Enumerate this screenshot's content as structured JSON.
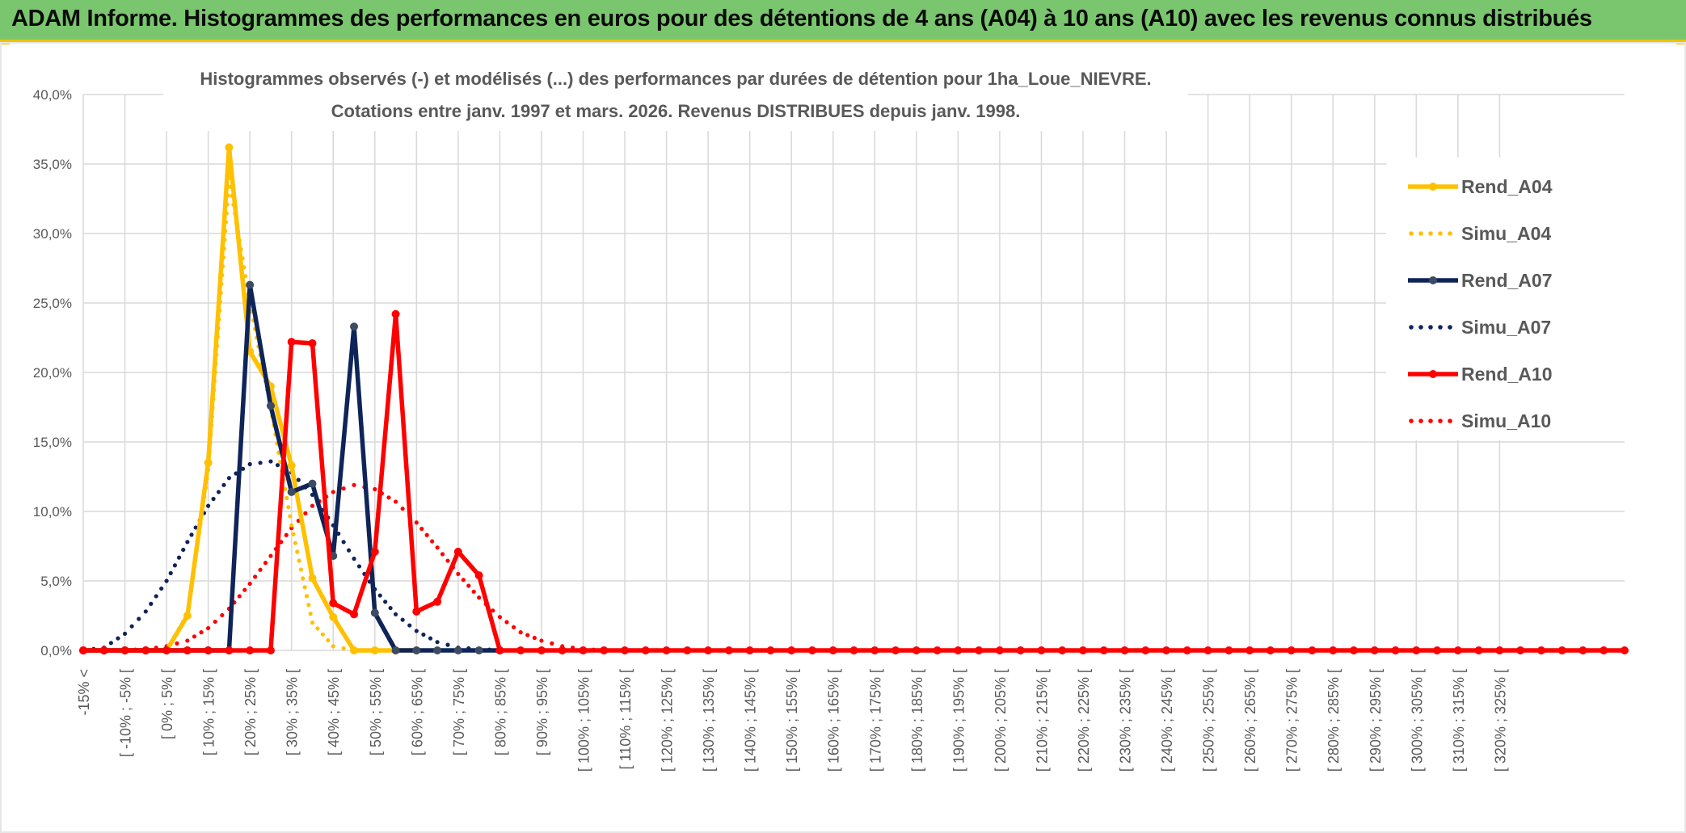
{
  "banner": {
    "title": "ADAM Informe. Histogrammes des performances en euros pour des détentions de 4 ans (A04) à 10 ans (A10) avec les revenus connus distribués"
  },
  "colors": {
    "banner_bg": "#7ac66e",
    "banner_accent": "#f2c200",
    "A04": "#ffc000",
    "A07": "#0f2458",
    "A07_marker": "#3d4b63",
    "A10": "#ff0000"
  },
  "chart_data": {
    "type": "line",
    "title_line1": "Histogrammes observés (-) et modélisés (...) des performances par durées de détention pour 1ha_Loue_NIEVRE.",
    "title_line2": "Cotations entre janv. 1997 et mars. 2026. Revenus DISTRIBUES depuis janv. 1998.",
    "xlabel": "",
    "ylabel": "",
    "ylim": [
      0,
      0.4
    ],
    "yticks": [
      "0,0%",
      "5,0%",
      "10,0%",
      "15,0%",
      "20,0%",
      "25,0%",
      "30,0%",
      "35,0%",
      "40,0%"
    ],
    "grid": true,
    "legend_position": "top-right",
    "categories": [
      "-15% <",
      "[ -10% ; -5% [",
      "[ 0% ; 5% [",
      "[ 10% ; 15% [",
      "[ 20% ; 25% [",
      "[ 30% ; 35% [",
      "[ 40% ; 45% [",
      "[ 50% ; 55% [",
      "[ 60% ; 65% [",
      "[ 70% ; 75% [",
      "[ 80% ; 85% [",
      "[ 90% ; 95% [",
      "[ 100% ; 105% [",
      "[ 110% ; 115% [",
      "[ 120% ; 125% [",
      "[ 130% ; 135% [",
      "[ 140% ; 145% [",
      "[ 150% ; 155% [",
      "[ 160% ; 165% [",
      "[ 170% ; 175% [",
      "[ 180% ; 185% [",
      "[ 190% ; 195% [",
      "[ 200% ; 205% [",
      "[ 210% ; 215% [",
      "[ 220% ; 225% [",
      "[ 230% ; 235% [",
      "[ 240% ; 245% [",
      "[ 250% ; 255% [",
      "[ 260% ; 265% [",
      "[ 270% ; 275% [",
      "[ 280% ; 285% [",
      "[ 290% ; 295% [",
      "[ 300% ; 305% [",
      "[ 310% ; 315% [",
      "[ 320% ; 325% ["
    ],
    "series": [
      {
        "name": "Rend_A04",
        "style": "solid",
        "color": "#ffc000",
        "points": [
          [
            -0.15,
            0
          ],
          [
            -0.125,
            0
          ],
          [
            -0.1,
            0
          ],
          [
            -0.075,
            0
          ],
          [
            -0.05,
            0
          ],
          [
            -0.025,
            0.025
          ],
          [
            0.0,
            0.135
          ],
          [
            0.025,
            0.362
          ],
          [
            0.05,
            0.215
          ],
          [
            0.075,
            0.19
          ],
          [
            0.1,
            0.133
          ],
          [
            0.125,
            0.052
          ],
          [
            0.15,
            0.024
          ],
          [
            0.175,
            0
          ],
          [
            0.2,
            0
          ],
          [
            0.225,
            0
          ],
          [
            0.25,
            0
          ]
        ]
      },
      {
        "name": "Simu_A04",
        "style": "dotted",
        "color": "#ffc000",
        "points": [
          [
            -0.15,
            0
          ],
          [
            -0.1,
            0
          ],
          [
            -0.05,
            0
          ],
          [
            -0.025,
            0.026
          ],
          [
            0.0,
            0.13
          ],
          [
            0.025,
            0.34
          ],
          [
            0.05,
            0.25
          ],
          [
            0.075,
            0.175
          ],
          [
            0.1,
            0.09
          ],
          [
            0.125,
            0.02
          ],
          [
            0.15,
            0.003
          ],
          [
            0.175,
            0
          ],
          [
            0.25,
            0
          ]
        ]
      },
      {
        "name": "Rend_A07",
        "style": "solid",
        "color": "#0f2458",
        "points": [
          [
            -0.15,
            0
          ],
          [
            -0.125,
            0
          ],
          [
            -0.1,
            0
          ],
          [
            -0.075,
            0
          ],
          [
            -0.05,
            0
          ],
          [
            -0.025,
            0
          ],
          [
            0.0,
            0
          ],
          [
            0.025,
            0
          ],
          [
            0.05,
            0.263
          ],
          [
            0.075,
            0.176
          ],
          [
            0.1,
            0.114
          ],
          [
            0.125,
            0.12
          ],
          [
            0.15,
            0.068
          ],
          [
            0.175,
            0.233
          ],
          [
            0.2,
            0.027
          ],
          [
            0.225,
            0
          ],
          [
            0.25,
            0
          ],
          [
            0.275,
            0
          ],
          [
            0.3,
            0
          ],
          [
            0.325,
            0
          ],
          [
            0.35,
            0
          ]
        ]
      },
      {
        "name": "Simu_A07",
        "style": "dotted",
        "color": "#0f2458",
        "points": [
          [
            -0.15,
            0
          ],
          [
            -0.125,
            0.002
          ],
          [
            -0.1,
            0.012
          ],
          [
            -0.075,
            0.028
          ],
          [
            -0.05,
            0.05
          ],
          [
            -0.025,
            0.078
          ],
          [
            0.0,
            0.104
          ],
          [
            0.025,
            0.124
          ],
          [
            0.05,
            0.134
          ],
          [
            0.075,
            0.136
          ],
          [
            0.1,
            0.128
          ],
          [
            0.125,
            0.112
          ],
          [
            0.15,
            0.09
          ],
          [
            0.175,
            0.066
          ],
          [
            0.2,
            0.044
          ],
          [
            0.225,
            0.026
          ],
          [
            0.25,
            0.014
          ],
          [
            0.275,
            0.006
          ],
          [
            0.3,
            0.002
          ],
          [
            0.325,
            0.001
          ],
          [
            0.35,
            0
          ]
        ]
      },
      {
        "name": "Rend_A10",
        "style": "solid",
        "color": "#ff0000",
        "points": [
          [
            -0.15,
            0
          ],
          [
            -0.125,
            0
          ],
          [
            -0.1,
            0
          ],
          [
            -0.075,
            0
          ],
          [
            -0.05,
            0
          ],
          [
            -0.025,
            0
          ],
          [
            0.0,
            0
          ],
          [
            0.025,
            0
          ],
          [
            0.05,
            0
          ],
          [
            0.075,
            0
          ],
          [
            0.1,
            0.222
          ],
          [
            0.125,
            0.221
          ],
          [
            0.15,
            0.034
          ],
          [
            0.175,
            0.026
          ],
          [
            0.2,
            0.071
          ],
          [
            0.225,
            0.242
          ],
          [
            0.25,
            0.028
          ],
          [
            0.275,
            0.035
          ],
          [
            0.3,
            0.071
          ],
          [
            0.325,
            0.054
          ],
          [
            0.35,
            0
          ],
          [
            0.375,
            0
          ],
          [
            0.4,
            0
          ],
          [
            0.425,
            0
          ],
          [
            0.45,
            0
          ],
          [
            0.475,
            0
          ],
          [
            0.5,
            0
          ],
          [
            0.525,
            0
          ],
          [
            0.55,
            0
          ],
          [
            0.575,
            0
          ],
          [
            0.6,
            0
          ],
          [
            0.625,
            0
          ],
          [
            0.65,
            0
          ],
          [
            0.675,
            0
          ],
          [
            0.7,
            0
          ],
          [
            0.725,
            0
          ],
          [
            0.75,
            0
          ],
          [
            0.775,
            0
          ],
          [
            0.8,
            0
          ],
          [
            0.825,
            0
          ],
          [
            0.85,
            0
          ],
          [
            0.875,
            0
          ],
          [
            0.9,
            0
          ],
          [
            0.925,
            0
          ],
          [
            0.95,
            0
          ],
          [
            0.975,
            0
          ],
          [
            1.0,
            0
          ],
          [
            1.025,
            0
          ],
          [
            1.05,
            0
          ],
          [
            1.075,
            0
          ],
          [
            1.1,
            0
          ],
          [
            1.125,
            0
          ],
          [
            1.15,
            0
          ],
          [
            1.175,
            0
          ],
          [
            1.2,
            0
          ],
          [
            1.225,
            0
          ],
          [
            1.25,
            0
          ],
          [
            1.275,
            0
          ],
          [
            1.3,
            0
          ],
          [
            1.325,
            0
          ],
          [
            1.35,
            0
          ],
          [
            1.375,
            0
          ],
          [
            1.4,
            0
          ],
          [
            1.425,
            0
          ],
          [
            1.45,
            0
          ],
          [
            1.475,
            0
          ],
          [
            1.5,
            0
          ],
          [
            1.525,
            0
          ],
          [
            1.55,
            0
          ],
          [
            1.575,
            0
          ],
          [
            1.6,
            0
          ],
          [
            1.625,
            0
          ],
          [
            1.65,
            0
          ],
          [
            1.675,
            0
          ],
          [
            1.7,
            0
          ]
        ]
      },
      {
        "name": "Simu_A10",
        "style": "dotted",
        "color": "#ff0000",
        "points": [
          [
            -0.15,
            0
          ],
          [
            -0.1,
            0
          ],
          [
            -0.075,
            0.001
          ],
          [
            -0.05,
            0.003
          ],
          [
            -0.025,
            0.007
          ],
          [
            0.0,
            0.016
          ],
          [
            0.025,
            0.03
          ],
          [
            0.05,
            0.048
          ],
          [
            0.075,
            0.068
          ],
          [
            0.1,
            0.088
          ],
          [
            0.125,
            0.104
          ],
          [
            0.15,
            0.114
          ],
          [
            0.175,
            0.119
          ],
          [
            0.2,
            0.116
          ],
          [
            0.225,
            0.107
          ],
          [
            0.25,
            0.092
          ],
          [
            0.275,
            0.074
          ],
          [
            0.3,
            0.055
          ],
          [
            0.325,
            0.038
          ],
          [
            0.35,
            0.024
          ],
          [
            0.375,
            0.013
          ],
          [
            0.4,
            0.007
          ],
          [
            0.425,
            0.003
          ],
          [
            0.45,
            0.001
          ],
          [
            0.475,
            0
          ],
          [
            0.55,
            0
          ]
        ]
      }
    ]
  }
}
